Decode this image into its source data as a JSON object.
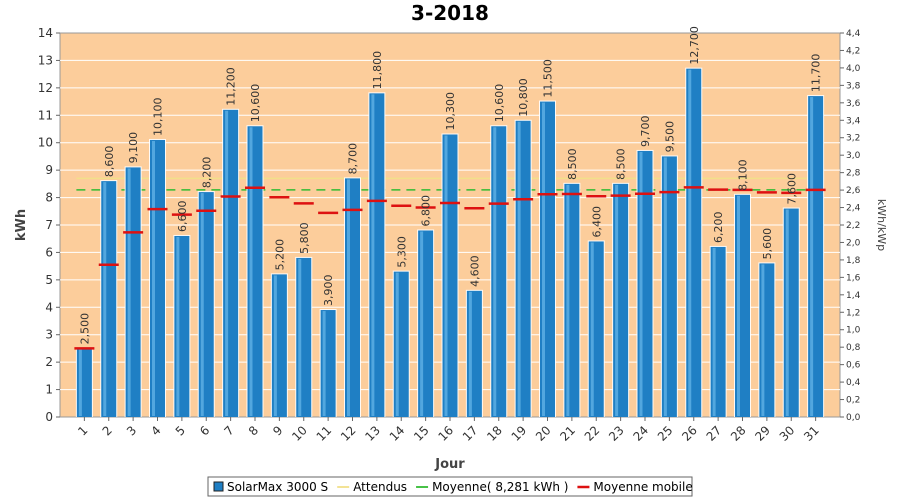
{
  "chart_data": {
    "type": "bar",
    "title": "3-2018",
    "xlabel": "Jour",
    "ylabel": "kWh",
    "y2label": "kWh/kWp",
    "ylim": [
      0,
      14
    ],
    "y2lim": [
      0,
      4.4
    ],
    "y_ticks": [
      "0",
      "1",
      "2",
      "3",
      "4",
      "5",
      "6",
      "7",
      "8",
      "9",
      "10",
      "11",
      "12",
      "13",
      "14"
    ],
    "y2_ticks": [
      "0,0",
      "0,2",
      "0,4",
      "0,6",
      "0,8",
      "1,0",
      "1,2",
      "1,4",
      "1,6",
      "1,8",
      "2,0",
      "2,2",
      "2,4",
      "2,6",
      "2,8",
      "3,0",
      "3,2",
      "3,4",
      "3,6",
      "3,8",
      "4,0",
      "4,2",
      "4,4"
    ],
    "categories": [
      "1",
      "2",
      "3",
      "4",
      "5",
      "6",
      "7",
      "8",
      "9",
      "10",
      "11",
      "12",
      "13",
      "14",
      "15",
      "16",
      "17",
      "18",
      "19",
      "20",
      "21",
      "22",
      "23",
      "24",
      "25",
      "26",
      "27",
      "28",
      "29",
      "30",
      "31"
    ],
    "series": [
      {
        "name": "SolarMax 3000 S",
        "color": "#1f7fc4",
        "values": [
          2.5,
          8.6,
          9.1,
          10.1,
          6.6,
          8.2,
          11.2,
          10.6,
          5.2,
          5.8,
          3.9,
          8.7,
          11.8,
          5.3,
          6.8,
          10.3,
          4.6,
          10.6,
          10.8,
          11.5,
          8.5,
          6.4,
          8.5,
          9.7,
          9.5,
          12.7,
          6.2,
          8.1,
          5.6,
          7.6,
          11.7
        ],
        "data_labels": [
          "2,500",
          "8,600",
          "9,100",
          "10,100",
          "6,600",
          "8,200",
          "11,200",
          "10,600",
          "5,200",
          "5,800",
          "3,900",
          "8,700",
          "11,800",
          "5,300",
          "6,800",
          "10,300",
          "4,600",
          "10,600",
          "10,800",
          "11,500",
          "8,500",
          "6,400",
          "8,500",
          "9,700",
          "9,500",
          "12,700",
          "6,200",
          "8,100",
          "5,600",
          "7,600",
          "11,700"
        ]
      },
      {
        "name": "Attendus",
        "color": "#f2e08a",
        "constant": 8.7
      },
      {
        "name": "Moyenne( 8,281 kWh )",
        "color": "#33bb33",
        "constant": 8.281
      },
      {
        "name": "Moyenne mobile",
        "color": "#dd1111",
        "values": [
          2.5,
          5.55,
          6.73,
          7.58,
          7.38,
          7.52,
          8.04,
          8.36,
          8.01,
          7.79,
          7.44,
          7.55,
          7.88,
          7.7,
          7.64,
          7.8,
          7.61,
          7.78,
          7.94,
          8.12,
          8.13,
          8.05,
          8.07,
          8.14,
          8.2,
          8.37,
          8.29,
          8.28,
          8.19,
          8.17,
          8.28
        ]
      }
    ],
    "legend_position": "bottom",
    "grid": true
  }
}
